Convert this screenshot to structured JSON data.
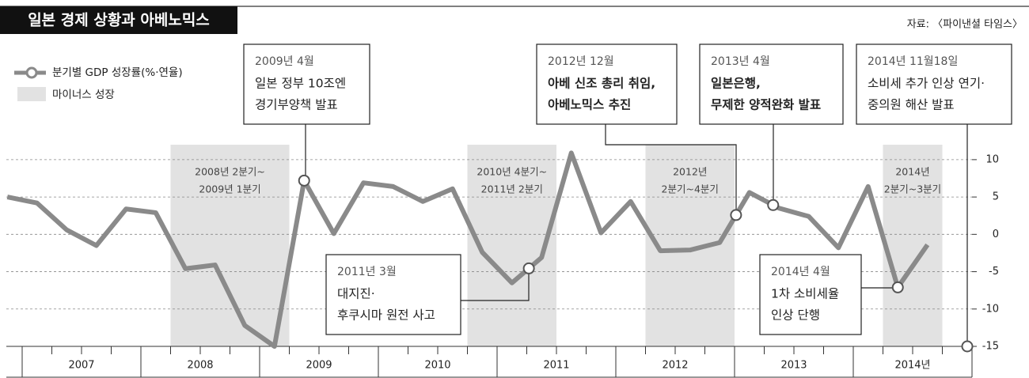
{
  "chart_data": {
    "type": "line",
    "title": "일본 경제 상황과 아베노믹스",
    "source": "자료: 〈파이낸셜 타임스〉",
    "categories": [
      null,
      null,
      null,
      null,
      null,
      null,
      null,
      null,
      null,
      null,
      null,
      null,
      null,
      null,
      null,
      null,
      null,
      null,
      null,
      null,
      null,
      null,
      null,
      null,
      null,
      null,
      null,
      null,
      null,
      null,
      null,
      null
    ],
    "x_groups": [
      "2007",
      "2008",
      "2009",
      "2010",
      "2011",
      "2012",
      "2013",
      "2014년"
    ],
    "series": [
      {
        "name": "분기별 GDP 성장률(%·연율)",
        "color": "#8a8a8a",
        "values": [
          5.0,
          4.2,
          0.6,
          -1.5,
          3.4,
          2.9,
          -4.6,
          -4.1,
          -12.2,
          -15,
          7.2,
          0.1,
          6.9,
          6.4,
          4.4,
          6.1,
          -2.4,
          -6.5,
          -3.1,
          10.9,
          0.2,
          4.4,
          -2.2,
          -2.1,
          -1.1,
          5.6,
          3.5,
          2.4,
          -1.8,
          6.4,
          -7.1,
          -1.4
        ]
      }
    ],
    "shading": {
      "name": "마이너스 성장",
      "color": "#e2e2e2",
      "periods": [
        [
          "2008년 2분기~",
          "2009년 1분기"
        ],
        [
          "2010년 4분기~",
          "2011년 2분기"
        ],
        [
          "2012년",
          "2분기~4분기"
        ],
        [
          "2014년",
          "2분기~3분기"
        ]
      ]
    },
    "annotations": [
      {
        "date": "2009년 4월",
        "lines": [
          "일본 정부 10조엔",
          "경기부양책 발표"
        ]
      },
      {
        "date": "2011년 3월",
        "lines": [
          "대지진·",
          "후쿠시마 원전 사고"
        ]
      },
      {
        "date": "2012년 12월",
        "lines": [
          "아베 신조 총리 취임,",
          "아베노믹스 추진"
        ]
      },
      {
        "date": "2013년 4월",
        "lines": [
          "일본은행,",
          "무제한 양적완화 발표"
        ]
      },
      {
        "date": "2014년 4월",
        "lines": [
          "1차 소비세율",
          "인상 단행"
        ]
      },
      {
        "date": "2014년 11월18일",
        "lines": [
          "소비세 추가 인상 연기·",
          "중의원 해산 발표"
        ]
      }
    ],
    "ylim": [
      -15,
      12
    ],
    "yticks": [
      10,
      5,
      0,
      -5,
      -10,
      -15
    ],
    "grid": true
  }
}
